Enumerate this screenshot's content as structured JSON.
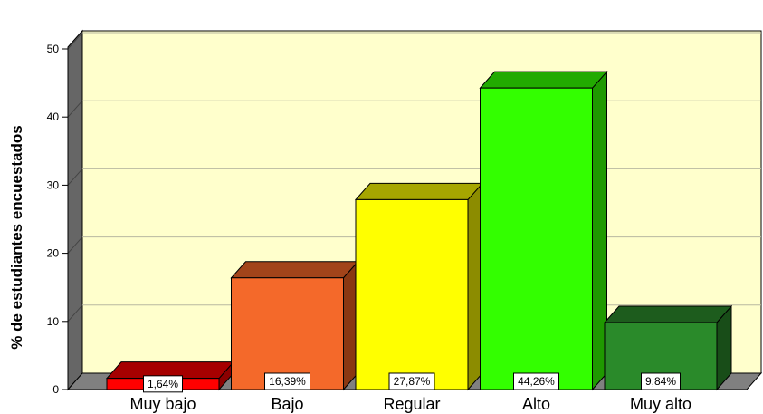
{
  "chart_data": {
    "type": "bar",
    "title": "",
    "xlabel": "",
    "ylabel": "% de estudiantes encuestados",
    "ylim": [
      0,
      50
    ],
    "yticks": [
      0,
      10,
      20,
      30,
      40,
      50
    ],
    "grid": true,
    "categories": [
      "Muy bajo",
      "Bajo",
      "Regular",
      "Alto",
      "Muy alto"
    ],
    "values": [
      1.64,
      16.39,
      27.87,
      44.26,
      9.84
    ],
    "value_labels": [
      "1,64%",
      "16,39%",
      "27,87%",
      "44,26%",
      "9,84%"
    ],
    "colors": [
      {
        "front": "#ff0000",
        "top": "#a60000",
        "side": "#8c0000"
      },
      {
        "front": "#f4692a",
        "top": "#a2441a",
        "side": "#8a3812"
      },
      {
        "front": "#ffff00",
        "top": "#a6a600",
        "side": "#8c8c00"
      },
      {
        "front": "#33ff00",
        "top": "#22aa00",
        "side": "#1f9900"
      },
      {
        "front": "#2a8a2a",
        "top": "#1d5c1d",
        "side": "#184d18"
      }
    ],
    "background": {
      "wall": "#ffffcc",
      "floor": "#808080",
      "side_wall": "#666666"
    }
  }
}
